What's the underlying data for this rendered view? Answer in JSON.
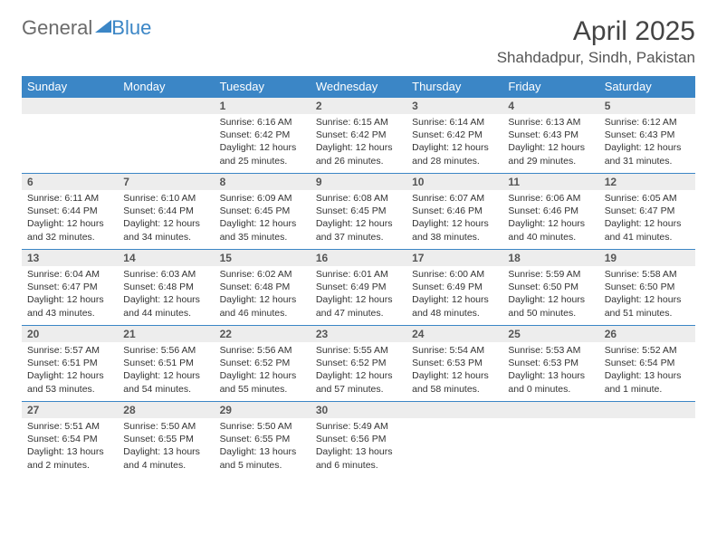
{
  "logo": {
    "word1": "General",
    "word2": "Blue"
  },
  "title": "April 2025",
  "location": "Shahdadpur, Sindh, Pakistan",
  "day_headers": [
    "Sunday",
    "Monday",
    "Tuesday",
    "Wednesday",
    "Thursday",
    "Friday",
    "Saturday"
  ],
  "colors": {
    "header_bg": "#3b86c6",
    "header_text": "#ffffff",
    "row_border": "#3b86c6",
    "daynum_bg": "#ededed",
    "body_text": "#333333",
    "page_bg": "#ffffff"
  },
  "weeks": [
    [
      {
        "day": "",
        "sunrise": "",
        "sunset": "",
        "daylight1": "",
        "daylight2": ""
      },
      {
        "day": "",
        "sunrise": "",
        "sunset": "",
        "daylight1": "",
        "daylight2": ""
      },
      {
        "day": "1",
        "sunrise": "Sunrise: 6:16 AM",
        "sunset": "Sunset: 6:42 PM",
        "daylight1": "Daylight: 12 hours",
        "daylight2": "and 25 minutes."
      },
      {
        "day": "2",
        "sunrise": "Sunrise: 6:15 AM",
        "sunset": "Sunset: 6:42 PM",
        "daylight1": "Daylight: 12 hours",
        "daylight2": "and 26 minutes."
      },
      {
        "day": "3",
        "sunrise": "Sunrise: 6:14 AM",
        "sunset": "Sunset: 6:42 PM",
        "daylight1": "Daylight: 12 hours",
        "daylight2": "and 28 minutes."
      },
      {
        "day": "4",
        "sunrise": "Sunrise: 6:13 AM",
        "sunset": "Sunset: 6:43 PM",
        "daylight1": "Daylight: 12 hours",
        "daylight2": "and 29 minutes."
      },
      {
        "day": "5",
        "sunrise": "Sunrise: 6:12 AM",
        "sunset": "Sunset: 6:43 PM",
        "daylight1": "Daylight: 12 hours",
        "daylight2": "and 31 minutes."
      }
    ],
    [
      {
        "day": "6",
        "sunrise": "Sunrise: 6:11 AM",
        "sunset": "Sunset: 6:44 PM",
        "daylight1": "Daylight: 12 hours",
        "daylight2": "and 32 minutes."
      },
      {
        "day": "7",
        "sunrise": "Sunrise: 6:10 AM",
        "sunset": "Sunset: 6:44 PM",
        "daylight1": "Daylight: 12 hours",
        "daylight2": "and 34 minutes."
      },
      {
        "day": "8",
        "sunrise": "Sunrise: 6:09 AM",
        "sunset": "Sunset: 6:45 PM",
        "daylight1": "Daylight: 12 hours",
        "daylight2": "and 35 minutes."
      },
      {
        "day": "9",
        "sunrise": "Sunrise: 6:08 AM",
        "sunset": "Sunset: 6:45 PM",
        "daylight1": "Daylight: 12 hours",
        "daylight2": "and 37 minutes."
      },
      {
        "day": "10",
        "sunrise": "Sunrise: 6:07 AM",
        "sunset": "Sunset: 6:46 PM",
        "daylight1": "Daylight: 12 hours",
        "daylight2": "and 38 minutes."
      },
      {
        "day": "11",
        "sunrise": "Sunrise: 6:06 AM",
        "sunset": "Sunset: 6:46 PM",
        "daylight1": "Daylight: 12 hours",
        "daylight2": "and 40 minutes."
      },
      {
        "day": "12",
        "sunrise": "Sunrise: 6:05 AM",
        "sunset": "Sunset: 6:47 PM",
        "daylight1": "Daylight: 12 hours",
        "daylight2": "and 41 minutes."
      }
    ],
    [
      {
        "day": "13",
        "sunrise": "Sunrise: 6:04 AM",
        "sunset": "Sunset: 6:47 PM",
        "daylight1": "Daylight: 12 hours",
        "daylight2": "and 43 minutes."
      },
      {
        "day": "14",
        "sunrise": "Sunrise: 6:03 AM",
        "sunset": "Sunset: 6:48 PM",
        "daylight1": "Daylight: 12 hours",
        "daylight2": "and 44 minutes."
      },
      {
        "day": "15",
        "sunrise": "Sunrise: 6:02 AM",
        "sunset": "Sunset: 6:48 PM",
        "daylight1": "Daylight: 12 hours",
        "daylight2": "and 46 minutes."
      },
      {
        "day": "16",
        "sunrise": "Sunrise: 6:01 AM",
        "sunset": "Sunset: 6:49 PM",
        "daylight1": "Daylight: 12 hours",
        "daylight2": "and 47 minutes."
      },
      {
        "day": "17",
        "sunrise": "Sunrise: 6:00 AM",
        "sunset": "Sunset: 6:49 PM",
        "daylight1": "Daylight: 12 hours",
        "daylight2": "and 48 minutes."
      },
      {
        "day": "18",
        "sunrise": "Sunrise: 5:59 AM",
        "sunset": "Sunset: 6:50 PM",
        "daylight1": "Daylight: 12 hours",
        "daylight2": "and 50 minutes."
      },
      {
        "day": "19",
        "sunrise": "Sunrise: 5:58 AM",
        "sunset": "Sunset: 6:50 PM",
        "daylight1": "Daylight: 12 hours",
        "daylight2": "and 51 minutes."
      }
    ],
    [
      {
        "day": "20",
        "sunrise": "Sunrise: 5:57 AM",
        "sunset": "Sunset: 6:51 PM",
        "daylight1": "Daylight: 12 hours",
        "daylight2": "and 53 minutes."
      },
      {
        "day": "21",
        "sunrise": "Sunrise: 5:56 AM",
        "sunset": "Sunset: 6:51 PM",
        "daylight1": "Daylight: 12 hours",
        "daylight2": "and 54 minutes."
      },
      {
        "day": "22",
        "sunrise": "Sunrise: 5:56 AM",
        "sunset": "Sunset: 6:52 PM",
        "daylight1": "Daylight: 12 hours",
        "daylight2": "and 55 minutes."
      },
      {
        "day": "23",
        "sunrise": "Sunrise: 5:55 AM",
        "sunset": "Sunset: 6:52 PM",
        "daylight1": "Daylight: 12 hours",
        "daylight2": "and 57 minutes."
      },
      {
        "day": "24",
        "sunrise": "Sunrise: 5:54 AM",
        "sunset": "Sunset: 6:53 PM",
        "daylight1": "Daylight: 12 hours",
        "daylight2": "and 58 minutes."
      },
      {
        "day": "25",
        "sunrise": "Sunrise: 5:53 AM",
        "sunset": "Sunset: 6:53 PM",
        "daylight1": "Daylight: 13 hours",
        "daylight2": "and 0 minutes."
      },
      {
        "day": "26",
        "sunrise": "Sunrise: 5:52 AM",
        "sunset": "Sunset: 6:54 PM",
        "daylight1": "Daylight: 13 hours",
        "daylight2": "and 1 minute."
      }
    ],
    [
      {
        "day": "27",
        "sunrise": "Sunrise: 5:51 AM",
        "sunset": "Sunset: 6:54 PM",
        "daylight1": "Daylight: 13 hours",
        "daylight2": "and 2 minutes."
      },
      {
        "day": "28",
        "sunrise": "Sunrise: 5:50 AM",
        "sunset": "Sunset: 6:55 PM",
        "daylight1": "Daylight: 13 hours",
        "daylight2": "and 4 minutes."
      },
      {
        "day": "29",
        "sunrise": "Sunrise: 5:50 AM",
        "sunset": "Sunset: 6:55 PM",
        "daylight1": "Daylight: 13 hours",
        "daylight2": "and 5 minutes."
      },
      {
        "day": "30",
        "sunrise": "Sunrise: 5:49 AM",
        "sunset": "Sunset: 6:56 PM",
        "daylight1": "Daylight: 13 hours",
        "daylight2": "and 6 minutes."
      },
      {
        "day": "",
        "sunrise": "",
        "sunset": "",
        "daylight1": "",
        "daylight2": ""
      },
      {
        "day": "",
        "sunrise": "",
        "sunset": "",
        "daylight1": "",
        "daylight2": ""
      },
      {
        "day": "",
        "sunrise": "",
        "sunset": "",
        "daylight1": "",
        "daylight2": ""
      }
    ]
  ]
}
